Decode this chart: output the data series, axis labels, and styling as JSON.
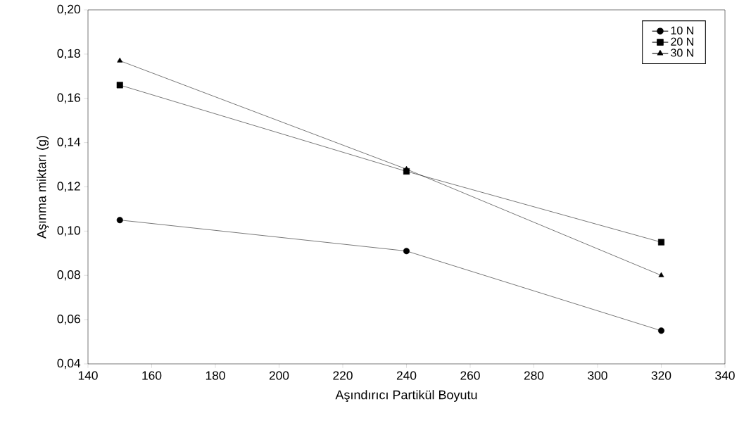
{
  "chart_data": {
    "type": "line",
    "xlabel": "Aşındırıcı Partikül Boyutu",
    "ylabel": "Aşınma miktarı (g)",
    "x": [
      150,
      240,
      320
    ],
    "series": [
      {
        "name": "10 N",
        "color": "#000000",
        "marker": "circle",
        "values": [
          0.105,
          0.091,
          0.055
        ]
      },
      {
        "name": "20 N",
        "color": "#000000",
        "marker": "square",
        "values": [
          0.166,
          0.127,
          0.095
        ]
      },
      {
        "name": "30 N",
        "color": "#000000",
        "marker": "triangle",
        "values": [
          0.177,
          0.128,
          0.08
        ]
      }
    ],
    "xlim": [
      140,
      340
    ],
    "xticks": [
      140,
      160,
      180,
      200,
      220,
      240,
      260,
      280,
      300,
      320,
      340
    ],
    "ylim": [
      0.04,
      0.2
    ],
    "yticks": [
      {
        "value": 0.04,
        "label": "0,04"
      },
      {
        "value": 0.06,
        "label": "0,06"
      },
      {
        "value": 0.08,
        "label": "0,08"
      },
      {
        "value": 0.1,
        "label": "0,10"
      },
      {
        "value": 0.12,
        "label": "0,12"
      },
      {
        "value": 0.14,
        "label": "0,14"
      },
      {
        "value": 0.16,
        "label": "0,16"
      },
      {
        "value": 0.18,
        "label": "0,18"
      },
      {
        "value": 0.2,
        "label": "0,20"
      }
    ],
    "grid": false,
    "legend": "top right",
    "line_style": "solid"
  }
}
